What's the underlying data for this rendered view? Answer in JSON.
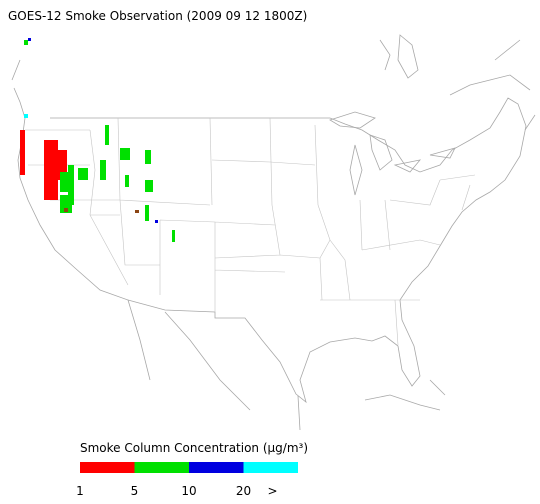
{
  "title": "GOES-12 Smoke Observation (2009 09 12  1800Z)",
  "legend": {
    "title": "Smoke Column Concentration (μg/m³)",
    "colors": [
      "#ff0000",
      "#00e000",
      "#0000e0",
      "#00ffff"
    ],
    "labels": [
      "1",
      "5",
      "10",
      "20",
      ">"
    ]
  }
}
